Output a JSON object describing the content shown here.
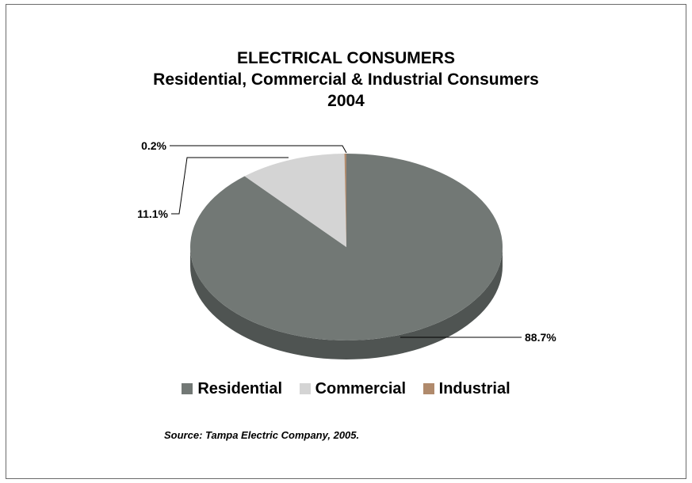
{
  "chart_data": {
    "type": "pie",
    "title": "ELECTRICAL CONSUMERS",
    "subtitle": "Residential, Commercial & Industrial Consumers",
    "year": "2004",
    "categories": [
      "Residential",
      "Commercial",
      "Industrial"
    ],
    "values": [
      88.7,
      11.1,
      0.2
    ],
    "data_labels": [
      "88.7%",
      "11.1%",
      "0.2%"
    ],
    "colors": [
      "#727875",
      "#d4d4d4",
      "#b08a6c"
    ],
    "side_colors": [
      "#4f5452",
      "#a9a9a9",
      "#8a6a52"
    ],
    "style": "3d",
    "legend_position": "bottom",
    "source": "Source:  Tampa Electric Company, 2005."
  }
}
